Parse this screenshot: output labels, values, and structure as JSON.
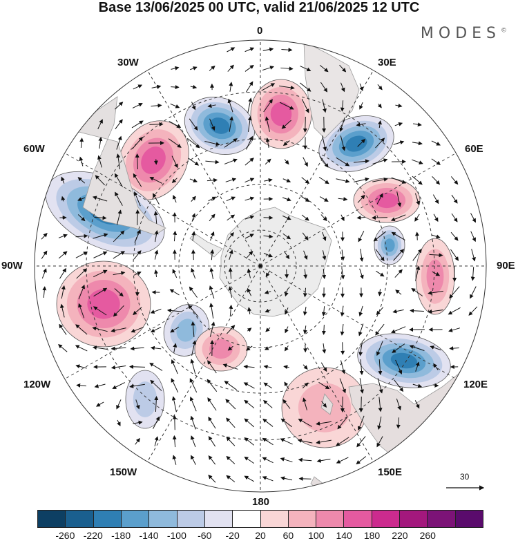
{
  "header": {
    "title": "Base 13/06/2025 00 UTC, valid 21/06/2025 12 UTC",
    "brand": "MODES",
    "brand_mark": "©"
  },
  "map": {
    "projection": "south-polar-stereographic",
    "longitude_labels": [
      {
        "id": "0",
        "text": "0"
      },
      {
        "id": "30e",
        "text": "30E"
      },
      {
        "id": "60e",
        "text": "60E"
      },
      {
        "id": "90e",
        "text": "90E"
      },
      {
        "id": "120e",
        "text": "120E"
      },
      {
        "id": "150e",
        "text": "150E"
      },
      {
        "id": "180",
        "text": "180"
      },
      {
        "id": "150w",
        "text": "150W"
      },
      {
        "id": "120w",
        "text": "120W"
      },
      {
        "id": "90w",
        "text": "90W"
      },
      {
        "id": "60w",
        "text": "60W"
      },
      {
        "id": "30w",
        "text": "30W"
      }
    ],
    "reference_vector_label": "30",
    "anomaly_centers": [
      {
        "sign": "negative",
        "level": 4
      },
      {
        "sign": "positive",
        "level": 3
      },
      {
        "sign": "negative",
        "level": 4
      },
      {
        "sign": "positive",
        "level": 3
      },
      {
        "sign": "negative",
        "level": 4
      },
      {
        "sign": "positive",
        "level": 3
      },
      {
        "sign": "negative",
        "level": 3
      },
      {
        "sign": "positive",
        "level": 2
      },
      {
        "sign": "negative",
        "level": 2
      },
      {
        "sign": "positive",
        "level": 2
      },
      {
        "sign": "negative",
        "level": 4
      },
      {
        "sign": "positive",
        "level": 3
      },
      {
        "sign": "negative",
        "level": 1
      },
      {
        "sign": "positive",
        "level": 1
      }
    ]
  },
  "colorbar": {
    "colors": [
      "#0d3f63",
      "#1a5f8f",
      "#2f7fb4",
      "#5b9fcc",
      "#8fbadc",
      "#bccbe6",
      "#e2e2f1",
      "#ffffff",
      "#f9d6d6",
      "#f4b3bd",
      "#ee89ac",
      "#e55aa0",
      "#cc2b8e",
      "#a3187d",
      "#7c1377",
      "#5a0b6c"
    ],
    "ticks": [
      "-260",
      "-220",
      "-180",
      "-140",
      "-100",
      "-60",
      "-20",
      "20",
      "60",
      "100",
      "140",
      "180",
      "220",
      "260"
    ]
  }
}
